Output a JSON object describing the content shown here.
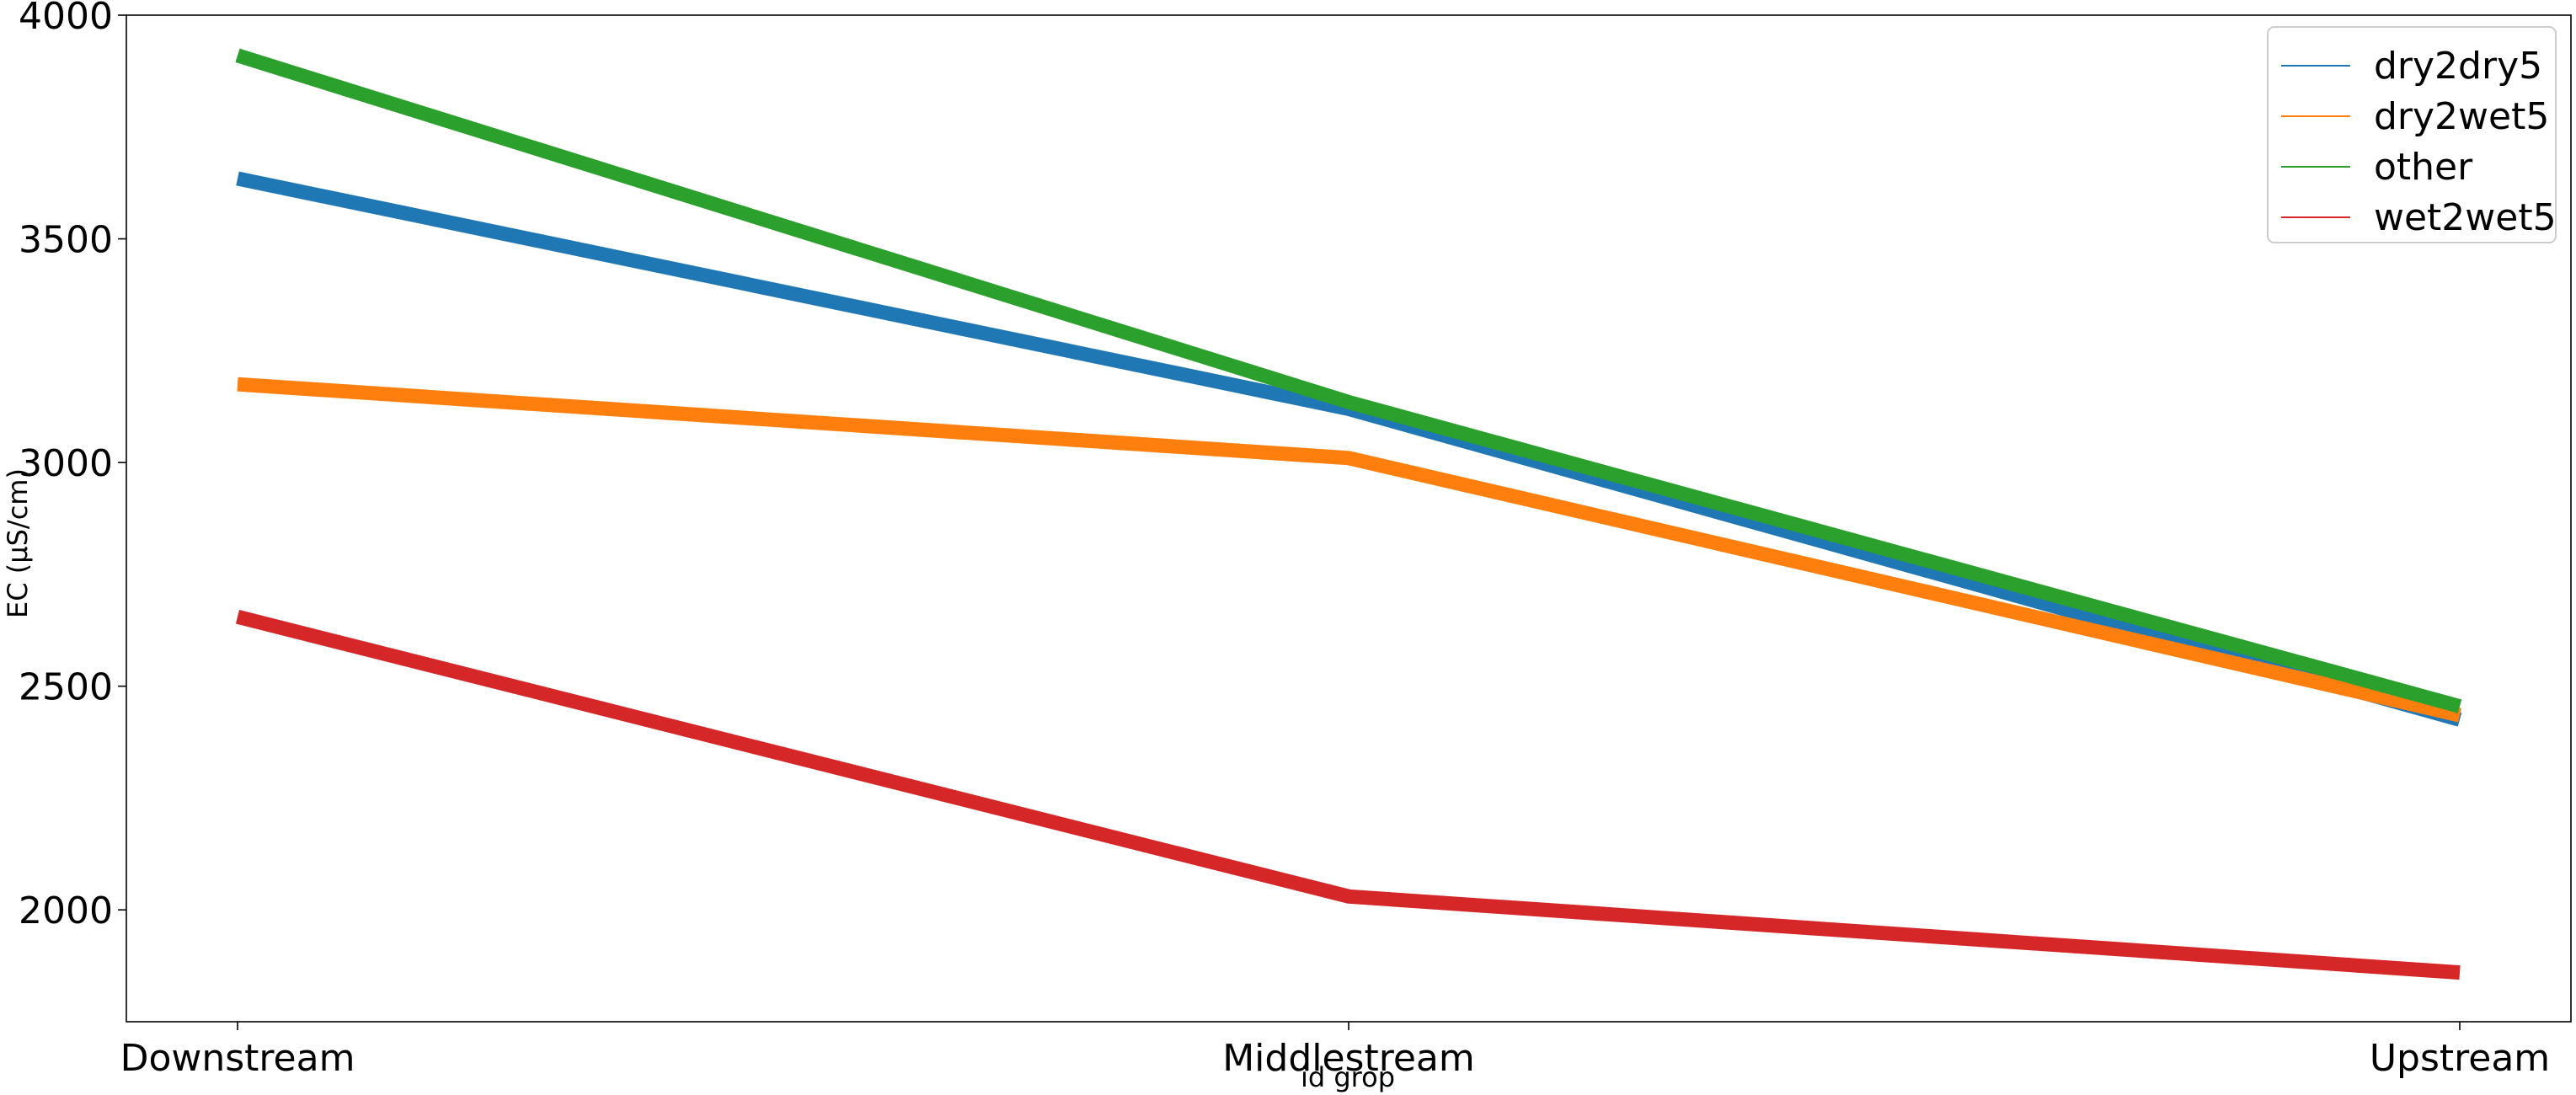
{
  "chart_data": {
    "type": "line",
    "title": "",
    "xlabel": "id grop",
    "ylabel": "EC (µS/cm)",
    "categories": [
      "Downstream",
      "Middlestream",
      "Upstream"
    ],
    "ylim": [
      1750,
      4000
    ],
    "yticks": [
      2000,
      2500,
      3000,
      3500,
      4000
    ],
    "grid": false,
    "legend_position": "top-right",
    "series": [
      {
        "name": "dry2dry5",
        "color": "#1f77b4",
        "values": [
          3635,
          3120,
          2425
        ]
      },
      {
        "name": "dry2wet5",
        "color": "#ff7f0e",
        "values": [
          3175,
          3010,
          2435
        ]
      },
      {
        "name": "other",
        "color": "#2ca02c",
        "values": [
          3910,
          3135,
          2455
        ]
      },
      {
        "name": "wet2wet5",
        "color": "#d62728",
        "values": [
          2655,
          2030,
          1860
        ]
      }
    ]
  }
}
